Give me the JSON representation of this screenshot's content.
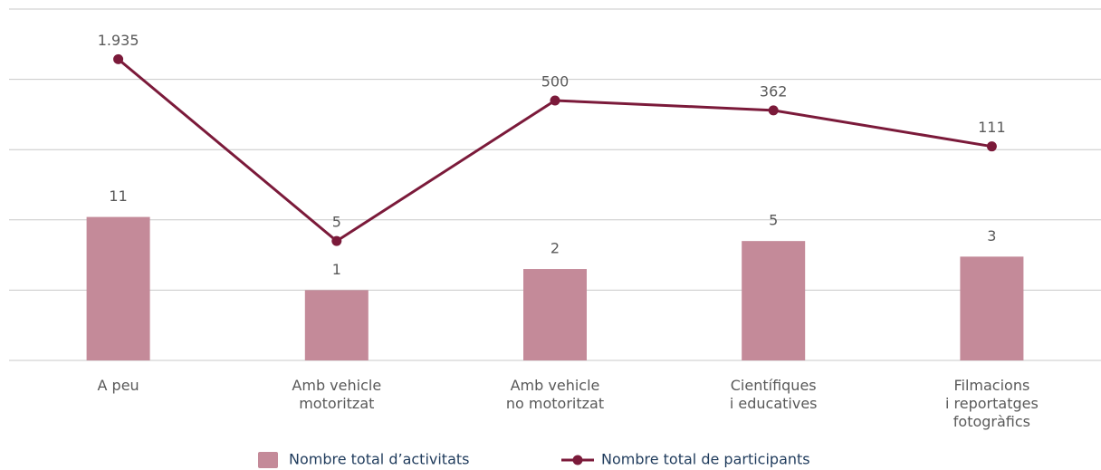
{
  "chart_data": {
    "type": "bar_line",
    "categories": [
      "A peu",
      "Amb vehicle\nmotoritzat",
      "Amb vehicle\nno motoritzat",
      "Científiques\ni educatives",
      "Filmacions\ni reportatges\nfotogràfics"
    ],
    "series": [
      {
        "name": "Nombre total d’activitats",
        "type": "bar",
        "color": "#c48a99",
        "values": [
          11,
          1,
          2,
          5,
          3
        ]
      },
      {
        "name": "Nombre total de participants",
        "type": "line",
        "color": "#7b1a3a",
        "values": [
          1935,
          5,
          500,
          362,
          111
        ],
        "value_labels": [
          "1.935",
          "5",
          "500",
          "362",
          "111"
        ]
      }
    ],
    "log_scale": true,
    "ylim": [
      0.1,
      10000
    ],
    "yticks": [
      0.1,
      1,
      10,
      100,
      1000,
      10000
    ],
    "grid": true
  }
}
